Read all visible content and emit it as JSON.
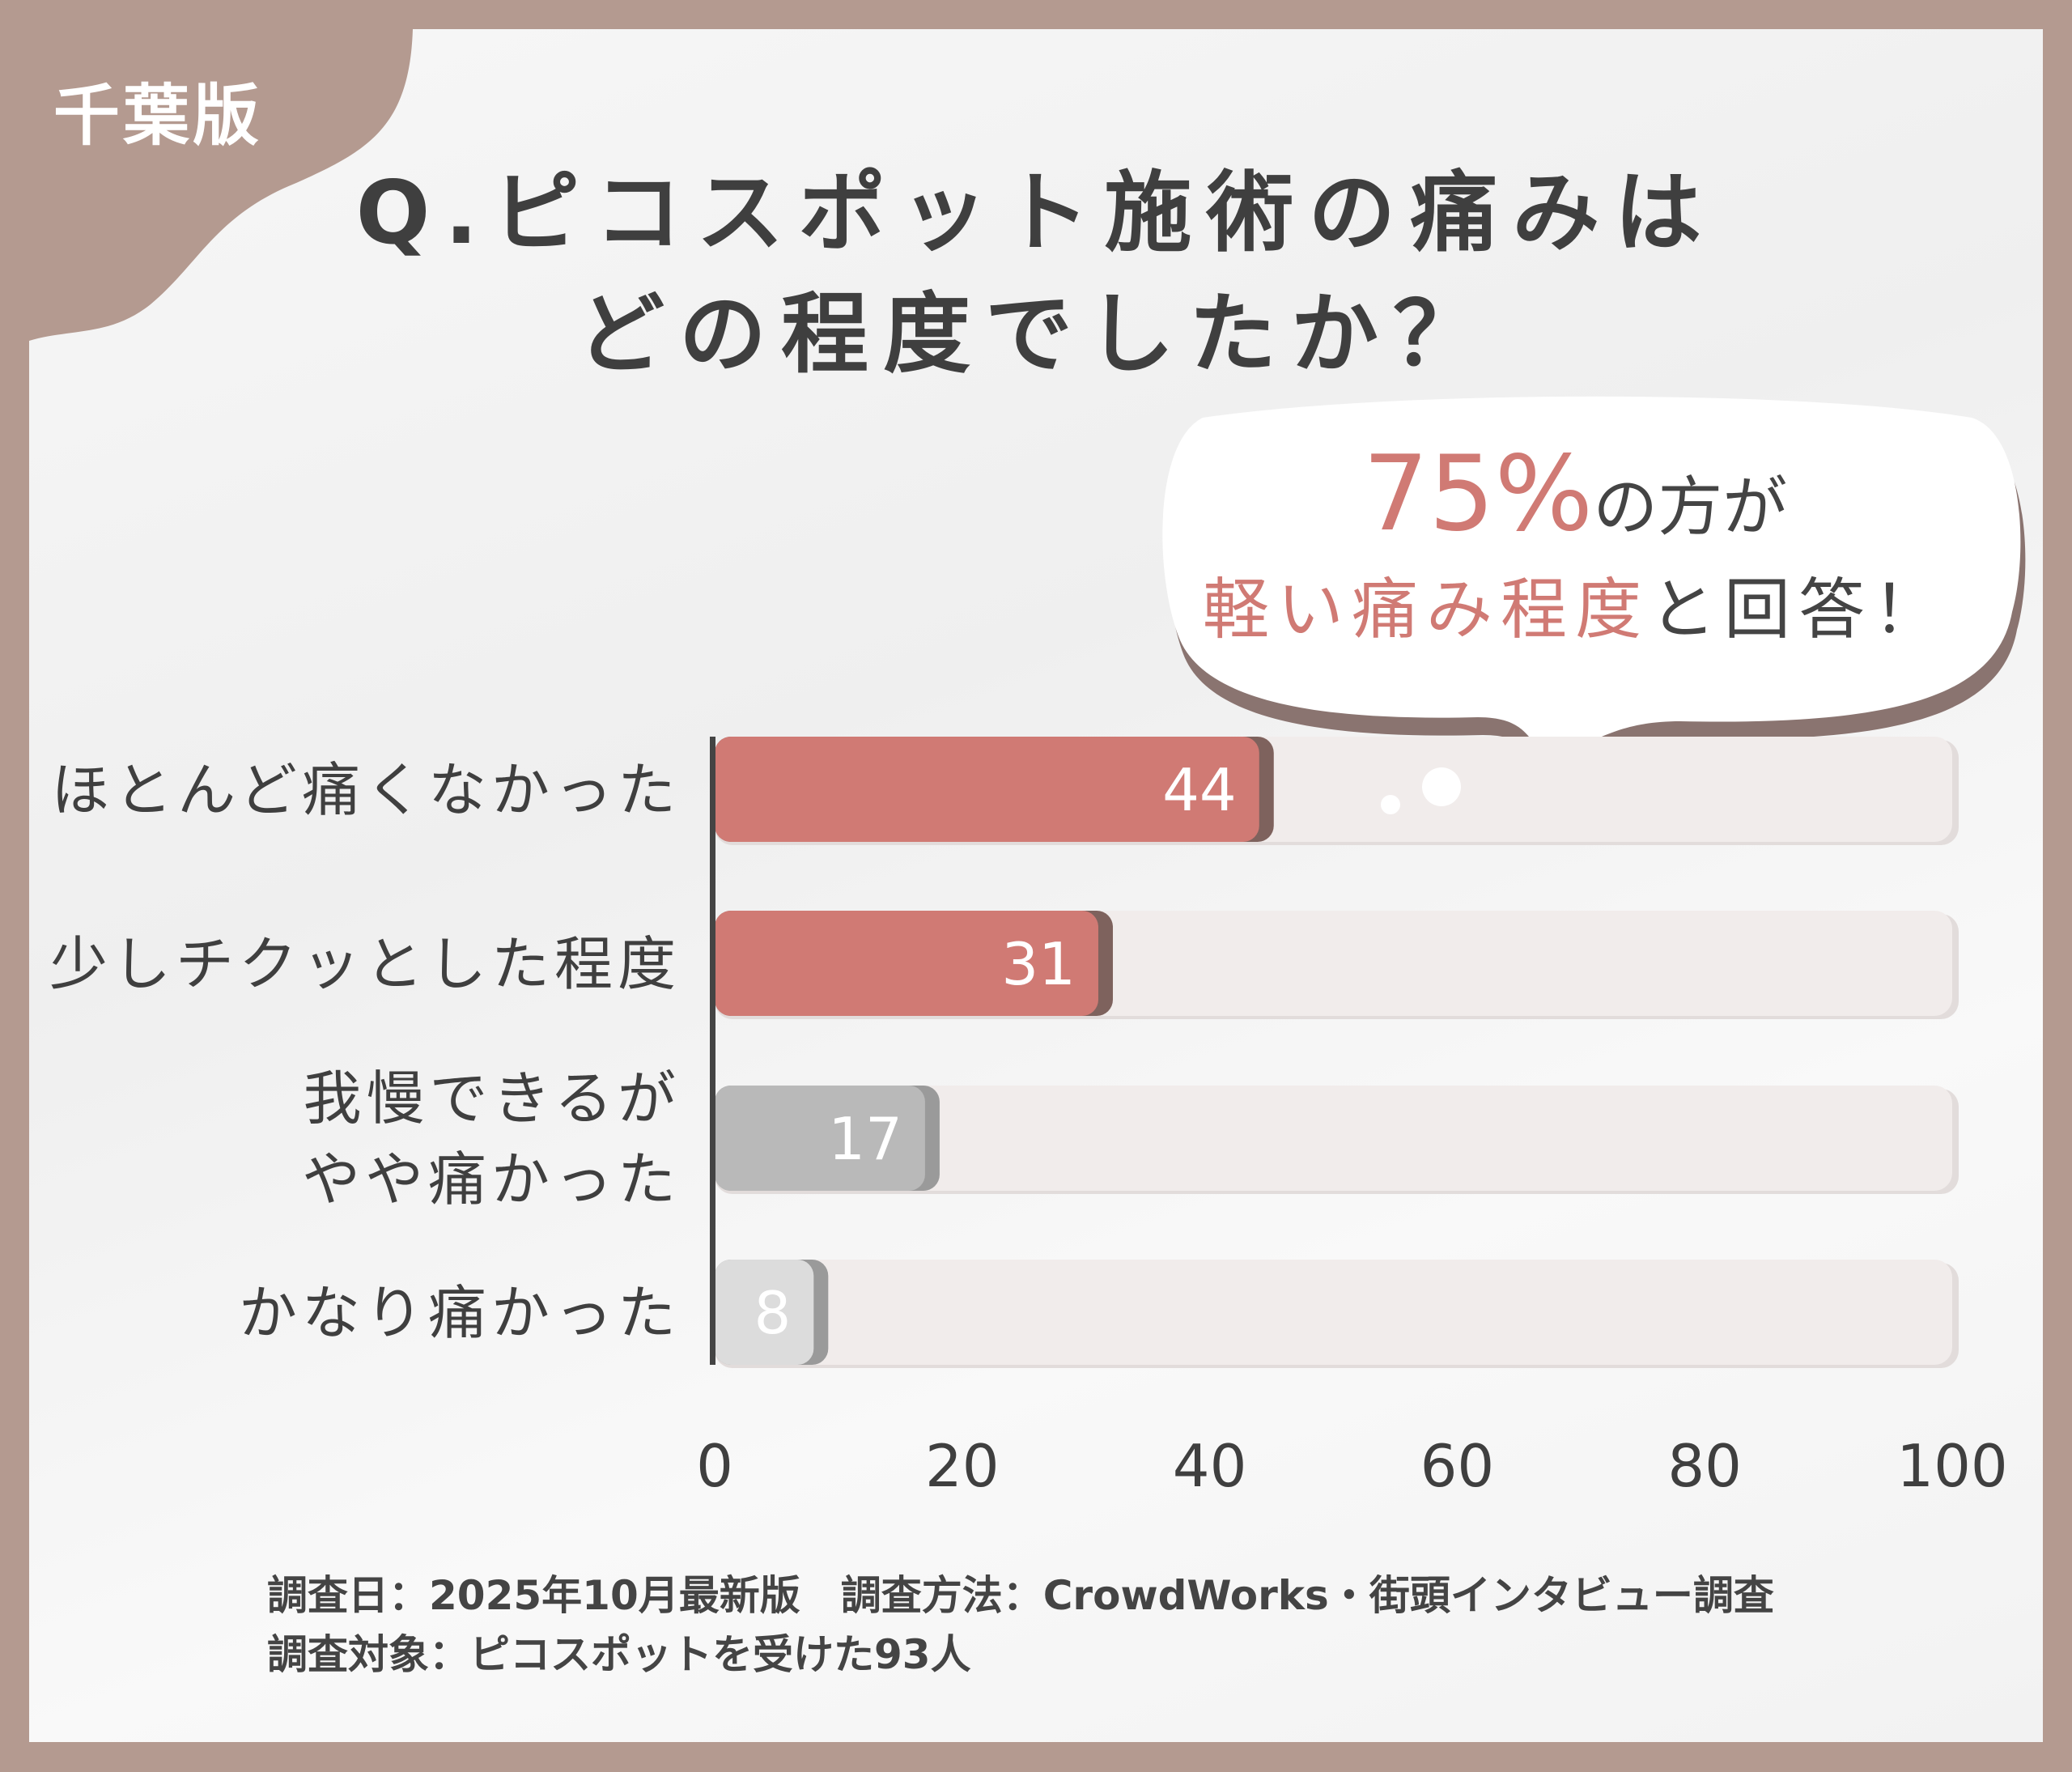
{
  "badge": "千葉版",
  "title": [
    "Q.ピコスポット施術の痛みは",
    "どの程度でしたか？"
  ],
  "callout": {
    "highlight_pct": "75%",
    "line1_rest": "の方が",
    "line2_highlight": "軽い痛み程度",
    "line2_rest": "と回答！"
  },
  "colors": {
    "frame": "#b49a90",
    "accent": "#d07a74",
    "bar_gray": "#b9b9b9",
    "bar_light": "#dcdcdc",
    "track": "#f1eceb",
    "text": "#444444"
  },
  "chart_data": {
    "type": "bar",
    "orientation": "horizontal",
    "categories": [
      "ほとんど痛くなかった",
      "少しチクッとした程度",
      "我慢できるが\nやや痛かった",
      "かなり痛かった"
    ],
    "values": [
      44,
      31,
      17,
      8
    ],
    "bar_colors": [
      "#d07a74",
      "#d07a74",
      "#b9b9b9",
      "#dcdcdc"
    ],
    "xlim": [
      0,
      100
    ],
    "xticks": [
      "0",
      "20",
      "40",
      "60",
      "80",
      "100"
    ],
    "grid": false
  },
  "footer": [
    "調査日：2025年10月最新版　調査方法：CrowdWorks・街頭インタビュー調査",
    "調査対象：ピコスポットを受けた93人"
  ]
}
